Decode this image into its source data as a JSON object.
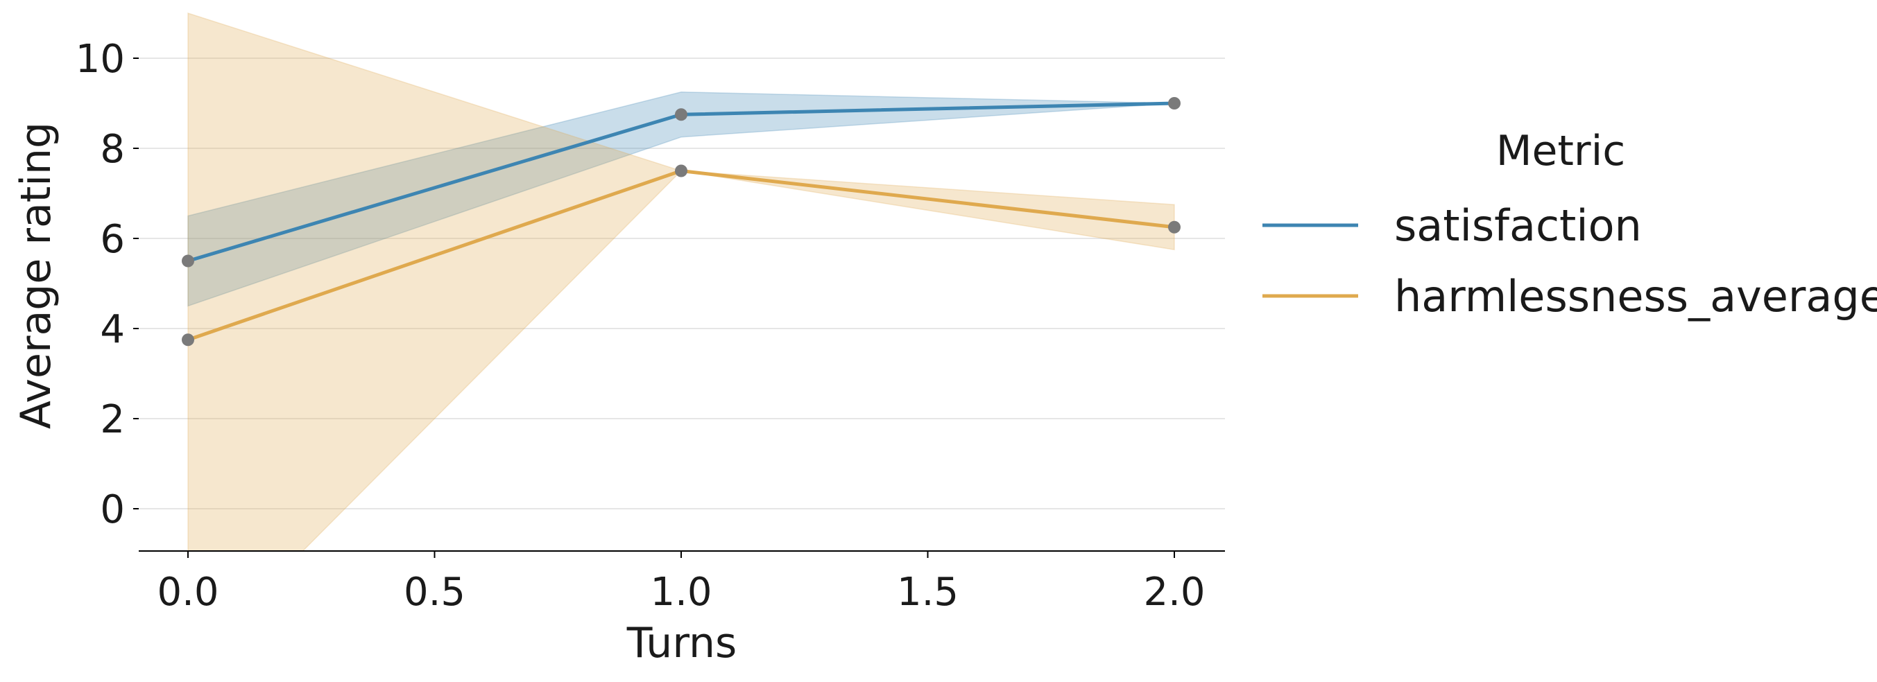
{
  "chart_data": {
    "type": "line",
    "title": "",
    "xlabel": "Turns",
    "ylabel": "Average rating",
    "xlim": [
      -0.1,
      2.1
    ],
    "ylim": [
      -1,
      11
    ],
    "xticks": [
      0.0,
      0.5,
      1.0,
      1.5,
      2.0
    ],
    "xtick_labels": [
      "0.0",
      "0.5",
      "1.0",
      "1.5",
      "2.0"
    ],
    "yticks": [
      0,
      2,
      4,
      6,
      8,
      10
    ],
    "ytick_labels": [
      "0",
      "2",
      "4",
      "6",
      "8",
      "10"
    ],
    "grid": "horizontal",
    "legend_position": "right",
    "legend_title": "Metric",
    "series": [
      {
        "name": "satisfaction",
        "color": "#3d85b2",
        "x": [
          0,
          1,
          2
        ],
        "y": [
          5.5,
          8.75,
          9.0
        ],
        "ci_lower": [
          4.5,
          8.25,
          9.0
        ],
        "ci_upper": [
          6.5,
          9.25,
          9.0
        ]
      },
      {
        "name": "harmlessness_average",
        "color": "#dfa94e",
        "x": [
          0,
          1,
          2
        ],
        "y": [
          3.75,
          7.5,
          6.25
        ],
        "ci_lower": [
          -3.5,
          7.5,
          5.75
        ],
        "ci_upper": [
          11.0,
          7.5,
          6.75
        ]
      }
    ],
    "marker_color": "#7a7a7a"
  }
}
